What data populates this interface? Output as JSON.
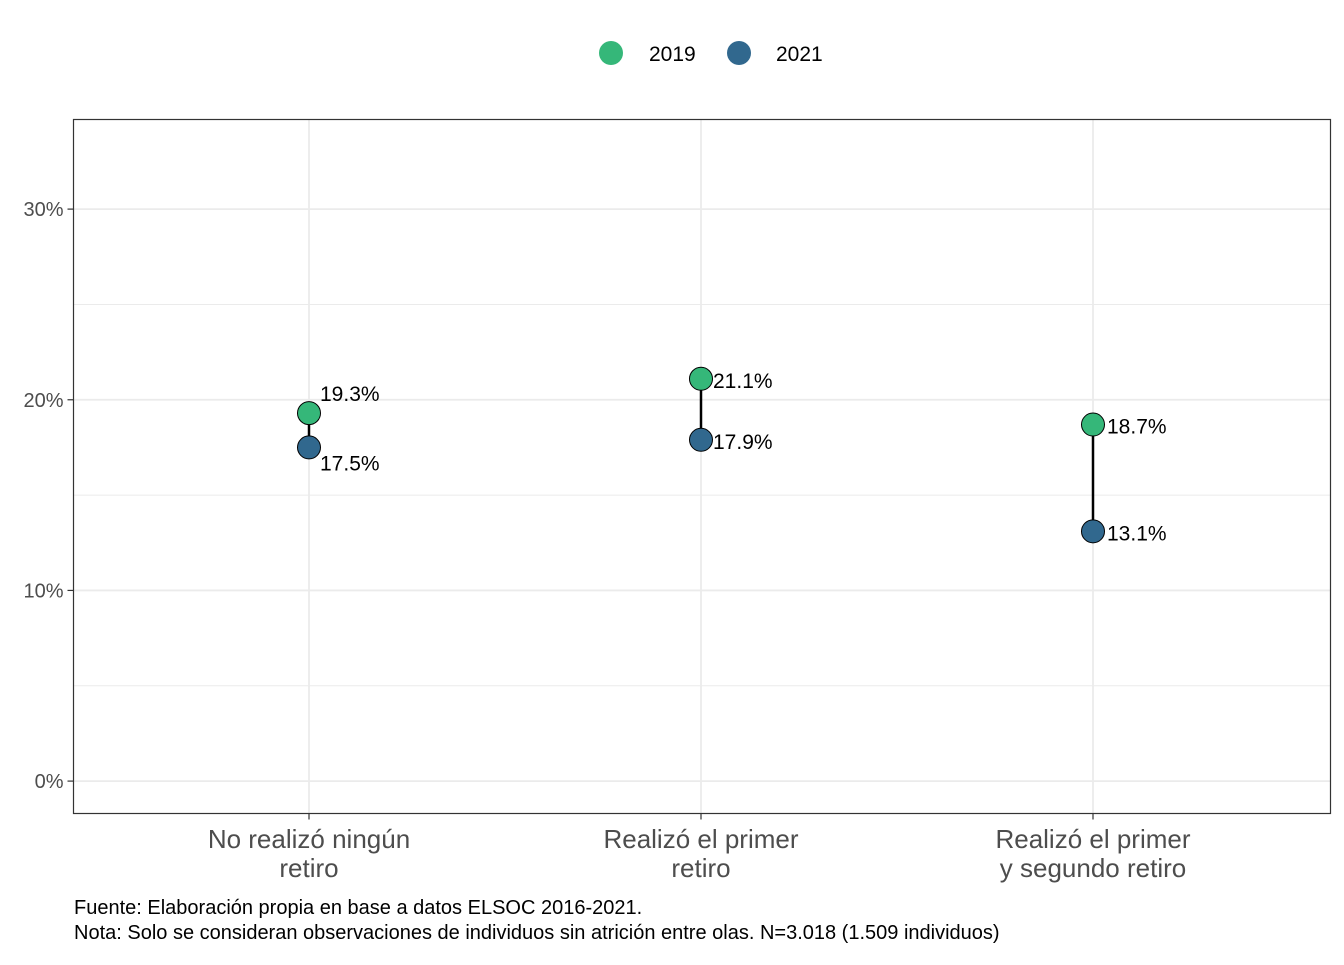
{
  "chart_data": {
    "type": "dumbbell",
    "categories": [
      [
        "No realizó ningún",
        "retiro"
      ],
      [
        "Realizó el primer",
        "retiro"
      ],
      [
        "Realizó el primer",
        "y segundo retiro"
      ]
    ],
    "series": [
      {
        "name": "2019",
        "color": "#35B779",
        "values": [
          19.3,
          21.1,
          18.7
        ],
        "labels": [
          "19.3%",
          "21.1%",
          "18.7%"
        ]
      },
      {
        "name": "2021",
        "color": "#31688E",
        "values": [
          17.5,
          17.9,
          13.1
        ],
        "labels": [
          "17.5%",
          "17.9%",
          "13.1%"
        ]
      }
    ],
    "yticks": [
      "0%",
      "10%",
      "20%",
      "30%"
    ],
    "ytick_values": [
      0,
      10,
      20,
      30
    ],
    "ylim": [
      -1.7,
      34.7
    ],
    "grid": true,
    "legend_position": "top"
  },
  "captions": {
    "source": "Fuente: Elaboración propia en base a datos ELSOC 2016-2021.",
    "note": "Nota: Solo se consideran observaciones de individuos sin atrición entre olas. N=3.018 (1.509 individuos)"
  }
}
